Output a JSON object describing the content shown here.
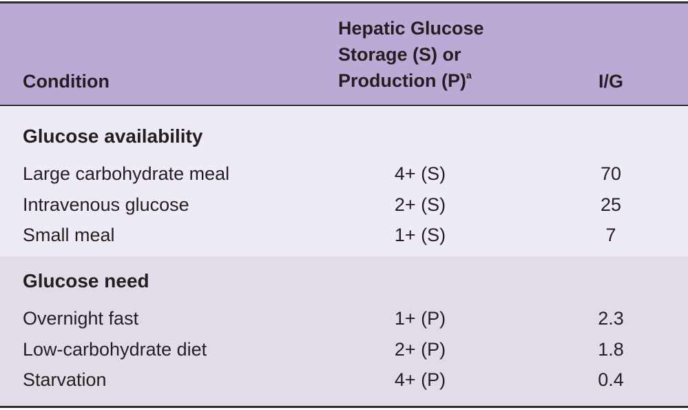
{
  "table": {
    "headers": [
      "Condition",
      "Hepatic Glucose Storage (S) or Production (P)",
      "I/G"
    ],
    "header_superscript": "a",
    "sections": [
      {
        "title": "Glucose availability",
        "rows": [
          [
            "Large carbohydrate meal",
            "4+ (S)",
            "70"
          ],
          [
            "Intravenous glucose",
            "2+ (S)",
            "25"
          ],
          [
            "Small meal",
            "1+ (S)",
            "7"
          ]
        ]
      },
      {
        "title": "Glucose need",
        "rows": [
          [
            "Overnight fast",
            "1+ (P)",
            "2.3"
          ],
          [
            "Low-carbohydrate diet",
            "2+ (P)",
            "1.8"
          ],
          [
            "Starvation",
            "4+ (P)",
            "0.4"
          ]
        ]
      }
    ]
  }
}
